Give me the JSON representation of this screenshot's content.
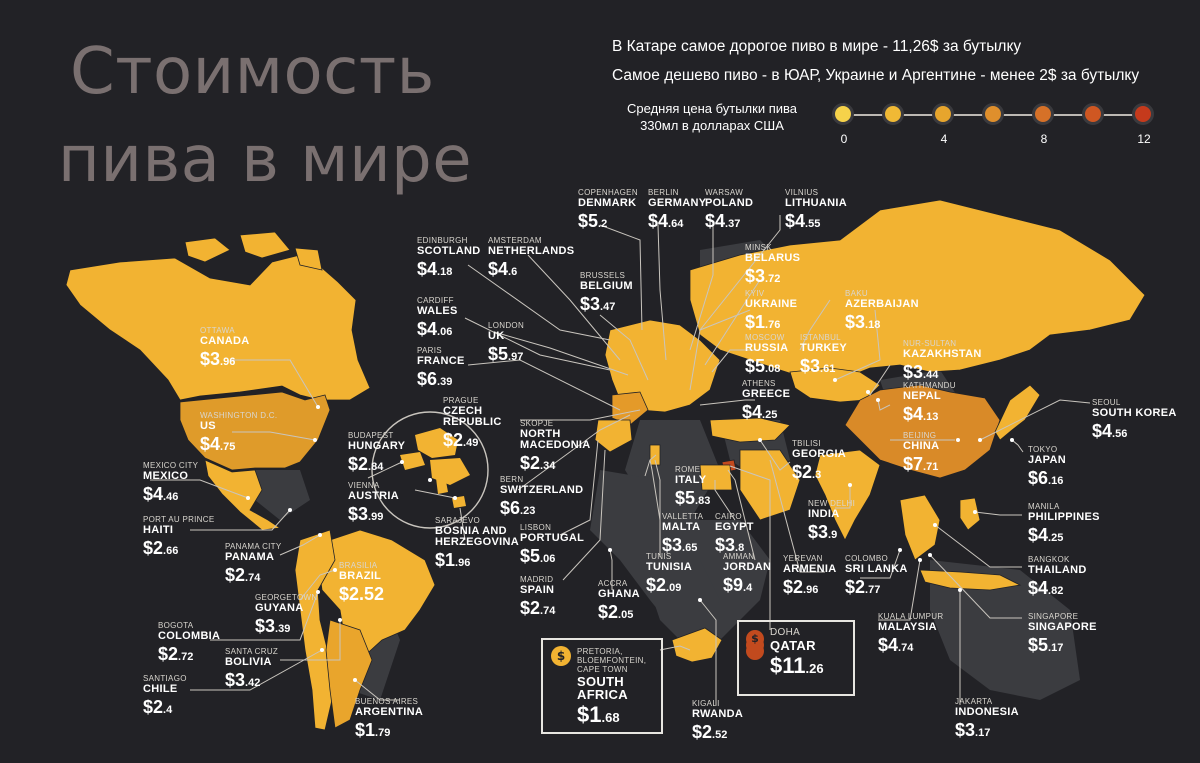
{
  "title": {
    "line1": "Стоимость",
    "line2": "пива в мире"
  },
  "headline1": "В Катаре самое дорогое пиво в мире - 11,26$ за бутылку",
  "headline2": "Самое дешево пиво - в ЮАР, Украине и Аргентине - менее 2$ за бутылку",
  "legend": {
    "label": "Средняя цена бутылки пива 330мл в долларах США",
    "ticks": [
      "0",
      "4",
      "8",
      "12"
    ],
    "colors": [
      "#f6d24a",
      "#f0b935",
      "#e7a52d",
      "#df8f2c",
      "#d67128",
      "#cf5722",
      "#c53a1c"
    ]
  },
  "colors": {
    "background": "#222226",
    "land_nodata": "#3b3c40",
    "low": "#f2b332",
    "mid": "#e3a02a",
    "high": "#d98a28",
    "top": "#c24a1e",
    "line": "#c9c5be"
  },
  "entries": [
    {
      "city": "Ottawa",
      "country": "Canada",
      "dollars": "$3",
      "cents": ".96",
      "price": 3.96
    },
    {
      "city": "Washington D.C.",
      "country": "US",
      "dollars": "$4",
      "cents": ".75",
      "price": 4.75
    },
    {
      "city": "Mexico City",
      "country": "Mexico",
      "dollars": "$4",
      "cents": ".46",
      "price": 4.46
    },
    {
      "city": "Port au Prince",
      "country": "Haiti",
      "dollars": "$2",
      "cents": ".66",
      "price": 2.66
    },
    {
      "city": "Panama City",
      "country": "Panama",
      "dollars": "$2",
      "cents": ".74",
      "price": 2.74
    },
    {
      "city": "Georgetown",
      "country": "Guyana",
      "dollars": "$3",
      "cents": ".39",
      "price": 3.39
    },
    {
      "city": "Bogota",
      "country": "Colombia",
      "dollars": "$2",
      "cents": ".72",
      "price": 2.72
    },
    {
      "city": "Santa Cruz",
      "country": "Bolivia",
      "dollars": "$3",
      "cents": ".42",
      "price": 3.42
    },
    {
      "city": "Santiago",
      "country": "Chile",
      "dollars": "$2",
      "cents": ".4",
      "price": 2.4
    },
    {
      "city": "Buenos Aires",
      "country": "Argentina",
      "dollars": "$1",
      "cents": ".79",
      "price": 1.79
    },
    {
      "city": "Brasilia",
      "country": "Brazil",
      "dollars": "$2.52",
      "cents": "",
      "price": 2.52
    },
    {
      "city": "Edinburgh",
      "country": "Scotland",
      "dollars": "$4",
      "cents": ".18",
      "price": 4.18
    },
    {
      "city": "Cardiff",
      "country": "Wales",
      "dollars": "$4",
      "cents": ".06",
      "price": 4.06
    },
    {
      "city": "Paris",
      "country": "France",
      "dollars": "$6",
      "cents": ".39",
      "price": 6.39
    },
    {
      "city": "Prague",
      "country": "Czech Republic",
      "dollars": "$2",
      "cents": ".49",
      "price": 2.49
    },
    {
      "city": "Budapest",
      "country": "Hungary",
      "dollars": "$2",
      "cents": ".84",
      "price": 2.84
    },
    {
      "city": "Vienna",
      "country": "Austria",
      "dollars": "$3",
      "cents": ".99",
      "price": 3.99
    },
    {
      "city": "Sarajevo",
      "country": "Bosnia and Herzegovina",
      "dollars": "$1",
      "cents": ".96",
      "price": 1.96
    },
    {
      "city": "Amsterdam",
      "country": "Netherlands",
      "dollars": "$4",
      "cents": ".6",
      "price": 4.6
    },
    {
      "city": "London",
      "country": "UK",
      "dollars": "$5",
      "cents": ".97",
      "price": 5.97
    },
    {
      "city": "Copenhagen",
      "country": "Denmark",
      "dollars": "$5",
      "cents": ".2",
      "price": 5.2
    },
    {
      "city": "Berlin",
      "country": "Germany",
      "dollars": "$4",
      "cents": ".64",
      "price": 4.64
    },
    {
      "city": "Warsaw",
      "country": "Poland",
      "dollars": "$4",
      "cents": ".37",
      "price": 4.37
    },
    {
      "city": "Vilnius",
      "country": "Lithuania",
      "dollars": "$4",
      "cents": ".55",
      "price": 4.55
    },
    {
      "city": "Brussels",
      "country": "Belgium",
      "dollars": "$3",
      "cents": ".47",
      "price": 3.47
    },
    {
      "city": "Minsk",
      "country": "Belarus",
      "dollars": "$3",
      "cents": ".72",
      "price": 3.72
    },
    {
      "city": "Kyiv",
      "country": "Ukraine",
      "dollars": "$1",
      "cents": ".76",
      "price": 1.76
    },
    {
      "city": "Moscow",
      "country": "Russia",
      "dollars": "$5",
      "cents": ".08",
      "price": 5.08
    },
    {
      "city": "Istanbul",
      "country": "Turkey",
      "dollars": "$3",
      "cents": ".61",
      "price": 3.61
    },
    {
      "city": "Athens",
      "country": "Greece",
      "dollars": "$4",
      "cents": ".25",
      "price": 4.25
    },
    {
      "city": "Baku",
      "country": "Azerbaijan",
      "dollars": "$3",
      "cents": ".18",
      "price": 3.18
    },
    {
      "city": "Nur-Sultan",
      "country": "Kazakhstan",
      "dollars": "$3",
      "cents": ".44",
      "price": 3.44
    },
    {
      "city": "Kathmandu",
      "country": "Nepal",
      "dollars": "$4",
      "cents": ".13",
      "price": 4.13
    },
    {
      "city": "Beijing",
      "country": "China",
      "dollars": "$7",
      "cents": ".71",
      "price": 7.71
    },
    {
      "city": "Seoul",
      "country": "South Korea",
      "dollars": "$4",
      "cents": ".56",
      "price": 4.56
    },
    {
      "city": "Tokyo",
      "country": "Japan",
      "dollars": "$6",
      "cents": ".16",
      "price": 6.16
    },
    {
      "city": "Tbilisi",
      "country": "Georgia",
      "dollars": "$2",
      "cents": ".3",
      "price": 2.3
    },
    {
      "city": "New Delhi",
      "country": "India",
      "dollars": "$3",
      "cents": ".9",
      "price": 3.9
    },
    {
      "city": "Manila",
      "country": "Philippines",
      "dollars": "$4",
      "cents": ".25",
      "price": 4.25
    },
    {
      "city": "Bangkok",
      "country": "Thailand",
      "dollars": "$4",
      "cents": ".82",
      "price": 4.82
    },
    {
      "city": "Yerevan",
      "country": "Armenia",
      "dollars": "$2",
      "cents": ".96",
      "price": 2.96
    },
    {
      "city": "Colombo",
      "country": "Sri Lanka",
      "dollars": "$2",
      "cents": ".77",
      "price": 2.77
    },
    {
      "city": "Kuala Lumpur",
      "country": "Malaysia",
      "dollars": "$4",
      "cents": ".74",
      "price": 4.74
    },
    {
      "city": "Singapore",
      "country": "Singapore",
      "dollars": "$5",
      "cents": ".17",
      "price": 5.17
    },
    {
      "city": "Jakarta",
      "country": "Indonesia",
      "dollars": "$3",
      "cents": ".17",
      "price": 3.17
    },
    {
      "city": "Skopje",
      "country": "North Macedonia",
      "dollars": "$2",
      "cents": ".34",
      "price": 2.34
    },
    {
      "city": "Bern",
      "country": "Switzerland",
      "dollars": "$6",
      "cents": ".23",
      "price": 6.23
    },
    {
      "city": "Lisbon",
      "country": "Portugal",
      "dollars": "$5",
      "cents": ".06",
      "price": 5.06
    },
    {
      "city": "Madrid",
      "country": "Spain",
      "dollars": "$2",
      "cents": ".74",
      "price": 2.74
    },
    {
      "city": "Rome",
      "country": "Italy",
      "dollars": "$5",
      "cents": ".83",
      "price": 5.83
    },
    {
      "city": "Valletta",
      "country": "Malta",
      "dollars": "$3",
      "cents": ".65",
      "price": 3.65
    },
    {
      "city": "Cairo",
      "country": "Egypt",
      "dollars": "$3",
      "cents": ".8",
      "price": 3.8
    },
    {
      "city": "Tunis",
      "country": "Tunisia",
      "dollars": "$2",
      "cents": ".09",
      "price": 2.09
    },
    {
      "city": "Amman",
      "country": "Jordan",
      "dollars": "$9",
      "cents": ".4",
      "price": 9.4
    },
    {
      "city": "Accra",
      "country": "Ghana",
      "dollars": "$2",
      "cents": ".05",
      "price": 2.05
    },
    {
      "city": "Kigali",
      "country": "Rwanda",
      "dollars": "$2",
      "cents": ".52",
      "price": 2.52
    }
  ],
  "highlight_south_africa": {
    "city": "Pretoria, Bloemfontein, Cape Town",
    "country": "South Africa",
    "dollars": "$1",
    "cents": ".68",
    "price": 1.68,
    "coin": "$"
  },
  "highlight_qatar": {
    "city": "Doha",
    "country": "Qatar",
    "dollars": "$11",
    "cents": ".26",
    "price": 11.26,
    "coin": "$"
  }
}
